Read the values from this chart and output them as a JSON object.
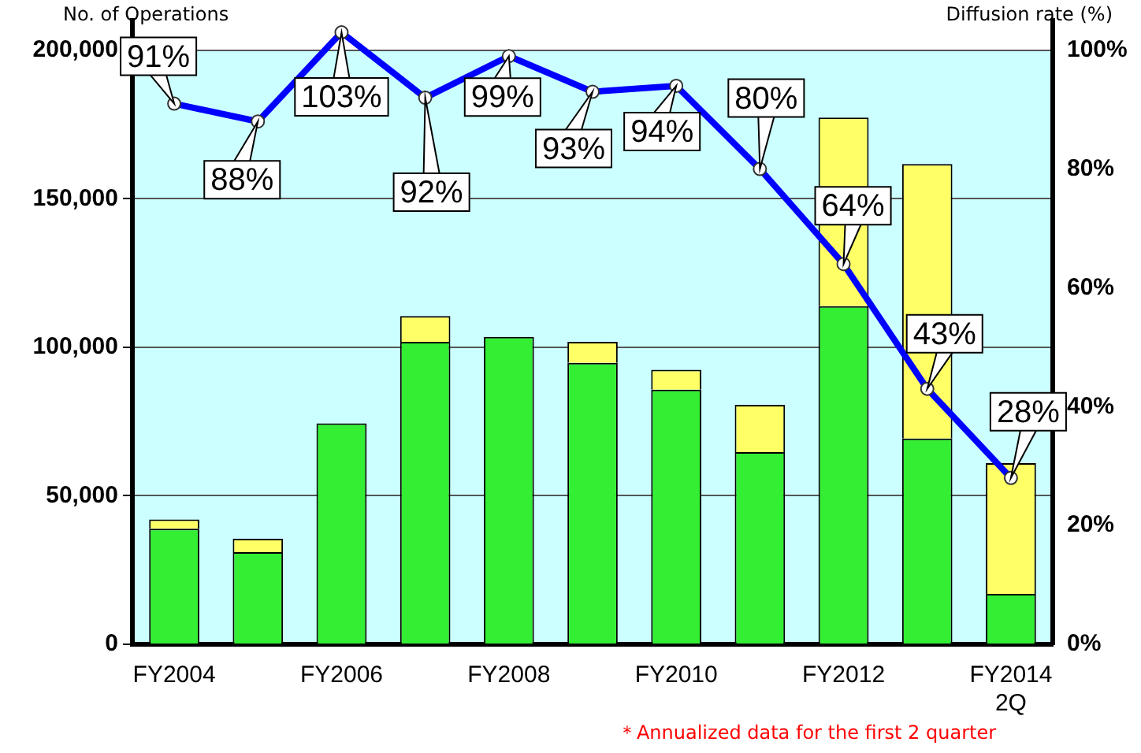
{
  "chart_data": {
    "type": "bar",
    "stacked": true,
    "ylabel": "No. of Operations",
    "y2label": "Diffusion rate (%)",
    "categories": [
      "FY2004",
      null,
      "FY2006",
      null,
      "FY2008",
      null,
      "FY2010",
      null,
      "FY2012",
      null,
      "FY2014 2Q"
    ],
    "series": [
      {
        "color": "#33ee33",
        "values": [
          38900,
          31000,
          74400,
          101800,
          103500,
          94700,
          85700,
          64700,
          113800,
          69300,
          17000
        ]
      },
      {
        "color": "#ffff66",
        "values": [
          3100,
          4500,
          null,
          8700,
          null,
          7100,
          6700,
          15900,
          63500,
          92400,
          44000
        ]
      },
      {
        "type": "line",
        "axis": "y2",
        "color": "#0000ff",
        "marker": "circle",
        "line_style": "solid",
        "values": [
          91,
          88,
          103,
          92,
          99,
          93,
          94,
          80,
          64,
          43,
          28
        ],
        "value_labels": [
          "91%",
          "88%",
          "103%",
          "92%",
          "99%",
          "93%",
          "94%",
          "80%",
          "64%",
          "43%",
          "28%"
        ]
      }
    ],
    "ylim": [
      0,
      210000
    ],
    "yticks": [
      0,
      {
        "value": 50000,
        "label": "50,000"
      },
      {
        "value": 100000,
        "label": "100,000"
      },
      {
        "value": 150000,
        "label": "150,000"
      },
      {
        "value": 200000,
        "label": "200,000"
      }
    ],
    "y2lim": [
      0,
      105
    ],
    "y2ticks": [
      {
        "value": 0,
        "label": "0%"
      },
      {
        "value": 20,
        "label": "20%"
      },
      {
        "value": 40,
        "label": "40%"
      },
      {
        "value": 60,
        "label": "60%"
      },
      {
        "value": 80,
        "label": "80%"
      },
      {
        "value": 100,
        "label": "100%"
      }
    ],
    "grid": "y",
    "legend": false,
    "annotations": [
      "＊Annualized data for the first 2 quarter"
    ]
  }
}
